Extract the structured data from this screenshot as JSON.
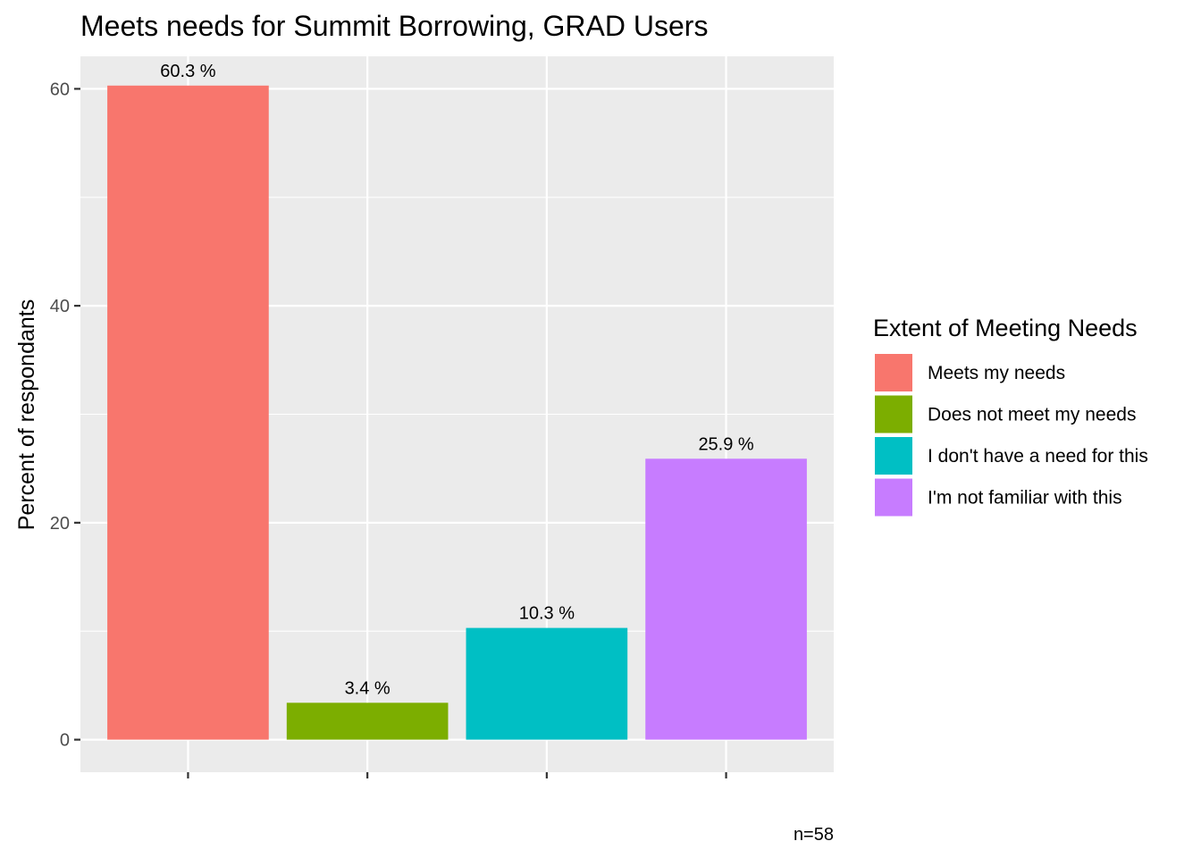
{
  "chart_data": {
    "type": "bar",
    "title": "Meets needs for Summit Borrowing, GRAD Users",
    "xlabel": "",
    "ylabel": "Percent of respondants",
    "ylim": [
      -3,
      63
    ],
    "yticks": [
      0,
      20,
      40,
      60
    ],
    "grid": true,
    "categories": [
      "Meets my needs",
      "Does not meet my needs",
      "I don't have a need for this",
      "I'm not familiar with this"
    ],
    "values": [
      60.3,
      3.4,
      10.3,
      25.9
    ],
    "value_labels": [
      "60.3 %",
      "3.4 %",
      "10.3 %",
      "25.9 %"
    ],
    "colors": [
      "#F8766D",
      "#7CAE00",
      "#00BFC4",
      "#C77CFF"
    ],
    "legend": {
      "title": "Extent of Meeting Needs",
      "placement": "right",
      "entries": [
        "Meets my needs",
        "Does not meet my needs",
        "I don't have a need for this",
        "I'm not familiar with this"
      ]
    },
    "caption": "n=58"
  }
}
